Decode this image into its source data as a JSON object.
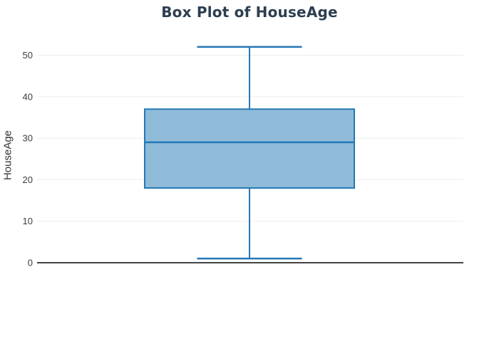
{
  "chart_data": {
    "type": "box",
    "title": "Box Plot of HouseAge",
    "ylabel": "HouseAge",
    "xlabel": "",
    "series": [
      {
        "name": "HouseAge",
        "min": 1,
        "q1": 18,
        "median": 29,
        "q3": 37,
        "max": 52,
        "outliers": []
      }
    ],
    "yticks": [
      0,
      10,
      20,
      30,
      40,
      50
    ],
    "ylim": [
      0,
      53
    ],
    "grid": "horizontal",
    "orientation": "vertical",
    "legend": "none",
    "colors": {
      "box_fill": "#8fbbd9",
      "box_stroke": "#2478b5",
      "grid_line": "#ededed",
      "axis_line": "#424242",
      "title_text": "#2d3e50",
      "tick_text": "#3d3d3d",
      "axis_label_text": "#333333",
      "background": "#ffffff"
    }
  }
}
